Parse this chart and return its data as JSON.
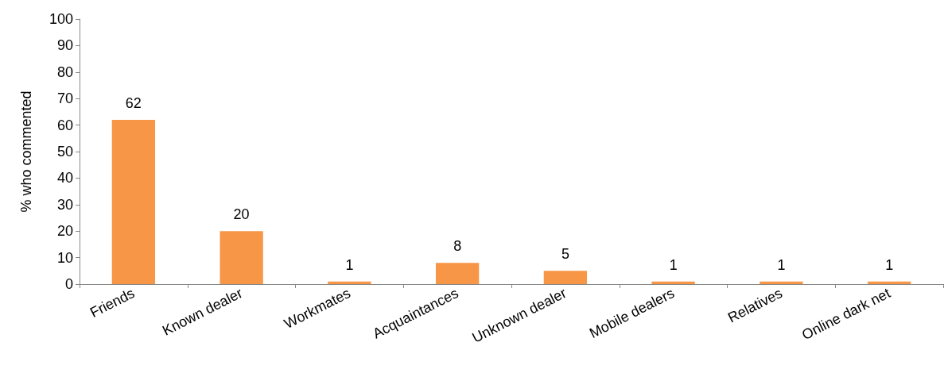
{
  "chart_data": {
    "type": "bar",
    "ylabel": "% who commented",
    "categories": [
      "Friends",
      "Known dealer",
      "Workmates",
      "Acquaintances",
      "Unknown dealer",
      "Mobile dealers",
      "Relatives",
      "Online dark net"
    ],
    "values": [
      62,
      20,
      1,
      8,
      5,
      1,
      1,
      1
    ],
    "color": "#f79646",
    "ylim": [
      0,
      100
    ],
    "yticks": [
      0,
      10,
      20,
      30,
      40,
      50,
      60,
      70,
      80,
      90,
      100
    ],
    "grid": false,
    "data_labels": true
  }
}
